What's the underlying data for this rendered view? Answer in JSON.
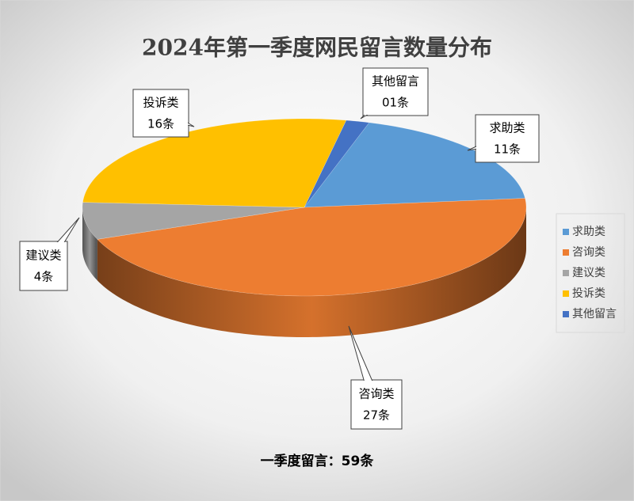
{
  "chart_data": {
    "type": "pie3d",
    "title": "2024年第一季度网民留言数量分布",
    "categories": [
      "求助类",
      "咨询类",
      "建议类",
      "投诉类",
      "其他留言"
    ],
    "values": [
      11,
      27,
      4,
      16,
      1
    ],
    "value_labels": [
      "11条",
      "27条",
      "4条",
      "16条",
      "01条"
    ],
    "colors": [
      "#5b9bd5",
      "#ed7d31",
      "#a5a5a5",
      "#ffc000",
      "#4472c4"
    ],
    "legend": "right",
    "footer": "一季度留言：59条"
  }
}
